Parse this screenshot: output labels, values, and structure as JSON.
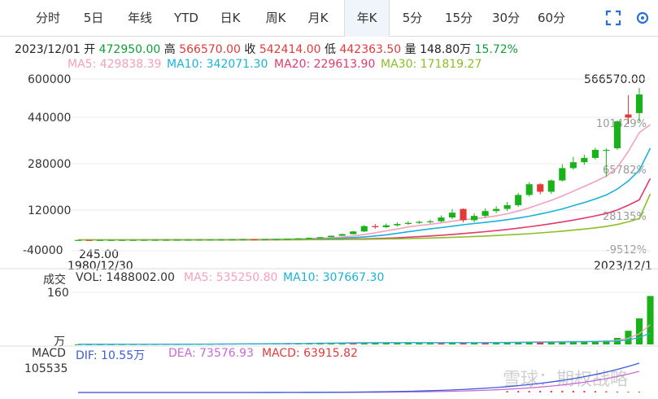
{
  "tabs": [
    "分时",
    "5日",
    "年线",
    "YTD",
    "日K",
    "周K",
    "月K",
    "年K",
    "5分",
    "15分",
    "30分",
    "60分"
  ],
  "active_tab": "年K",
  "info": {
    "date": "2023/12/01",
    "open_label": "开",
    "open": "472950.00",
    "high_label": "高",
    "high": "566570.00",
    "close_label": "收",
    "close": "542414.00",
    "low_label": "低",
    "low": "442363.50",
    "vol_label": "量",
    "vol": "148.80万",
    "pct": "15.72%"
  },
  "ma": {
    "ma5": "MA5: 429838.39",
    "ma10": "MA10: 342071.30",
    "ma20": "MA20: 229613.90",
    "ma30": "MA30: 171819.27"
  },
  "colors": {
    "up": "#e23a3a",
    "down": "#19b319",
    "ma5": "#f4a0be",
    "ma10": "#1ab2d8",
    "ma20": "#e23a6e",
    "ma30": "#8cbf26",
    "dif": "#3d5bd9",
    "dea": "#c86ad6"
  },
  "y_axis_left": [
    "600000",
    "440000",
    "280000",
    "120000",
    "-40000"
  ],
  "y_axis_right": [
    "101429%",
    "65782%",
    "28135%",
    "-9512%"
  ],
  "max_label": "566570.00",
  "first_label": "245.00",
  "x_start": "1980/12/30",
  "x_end": "2023/12/1",
  "vol_panel": {
    "title": "成交",
    "vol": "VOL: 1488002.00",
    "ma5": "MA5: 535250.80",
    "ma10": "MA10: 307667.30",
    "ytop": "160",
    "unit": "万"
  },
  "macd_panel": {
    "title": "MACD",
    "dif": "DIF: 10.55万",
    "dea": "DEA: 73576.93",
    "macd": "MACD: 63915.82",
    "ytop": "105535"
  },
  "watermark": "雪球：期权战略",
  "chart_data": {
    "type": "candlestick",
    "title": "",
    "x_range": [
      "1980/12/30",
      "2023/12/1"
    ],
    "ylim": [
      -40000,
      600000
    ],
    "candles": [
      {
        "o": 245,
        "c": 420,
        "h": 500,
        "l": 200
      },
      {
        "o": 420,
        "c": 380,
        "h": 520,
        "l": 350
      },
      {
        "o": 380,
        "c": 450,
        "h": 500,
        "l": 350
      },
      {
        "o": 450,
        "c": 520,
        "h": 600,
        "l": 400
      },
      {
        "o": 520,
        "c": 600,
        "h": 700,
        "l": 480
      },
      {
        "o": 600,
        "c": 650,
        "h": 720,
        "l": 560
      },
      {
        "o": 650,
        "c": 800,
        "h": 900,
        "l": 600
      },
      {
        "o": 800,
        "c": 900,
        "h": 1100,
        "l": 760
      },
      {
        "o": 900,
        "c": 1000,
        "h": 1200,
        "l": 850
      },
      {
        "o": 1000,
        "c": 1200,
        "h": 1400,
        "l": 950
      },
      {
        "o": 1200,
        "c": 1300,
        "h": 1500,
        "l": 1100
      },
      {
        "o": 1300,
        "c": 1500,
        "h": 1800,
        "l": 1200
      },
      {
        "o": 1500,
        "c": 1700,
        "h": 2000,
        "l": 1400
      },
      {
        "o": 1700,
        "c": 2000,
        "h": 2300,
        "l": 1600
      },
      {
        "o": 2000,
        "c": 2400,
        "h": 2600,
        "l": 1900
      },
      {
        "o": 2400,
        "c": 2800,
        "h": 3100,
        "l": 2300
      },
      {
        "o": 2800,
        "c": 2300,
        "h": 3200,
        "l": 2100
      },
      {
        "o": 2300,
        "c": 3000,
        "h": 3400,
        "l": 2200
      },
      {
        "o": 3000,
        "c": 3800,
        "h": 4200,
        "l": 2900
      },
      {
        "o": 3800,
        "c": 5000,
        "h": 5500,
        "l": 3700
      },
      {
        "o": 5000,
        "c": 6500,
        "h": 7000,
        "l": 4800
      },
      {
        "o": 6500,
        "c": 8500,
        "h": 9200,
        "l": 6200
      },
      {
        "o": 8500,
        "c": 11000,
        "h": 12000,
        "l": 8000
      },
      {
        "o": 11000,
        "c": 16000,
        "h": 17000,
        "l": 10500
      },
      {
        "o": 16000,
        "c": 22000,
        "h": 24000,
        "l": 15000
      },
      {
        "o": 22000,
        "c": 32000,
        "h": 34000,
        "l": 21000
      },
      {
        "o": 32000,
        "c": 52000,
        "h": 56000,
        "l": 30000
      },
      {
        "o": 52000,
        "c": 48000,
        "h": 60000,
        "l": 42000
      },
      {
        "o": 48000,
        "c": 55000,
        "h": 62000,
        "l": 44000
      },
      {
        "o": 55000,
        "c": 60000,
        "h": 66000,
        "l": 50000
      },
      {
        "o": 60000,
        "c": 64000,
        "h": 70000,
        "l": 56000
      },
      {
        "o": 64000,
        "c": 68000,
        "h": 72000,
        "l": 60000
      },
      {
        "o": 68000,
        "c": 70000,
        "h": 76000,
        "l": 62000
      },
      {
        "o": 70000,
        "c": 84000,
        "h": 92000,
        "l": 66000
      },
      {
        "o": 84000,
        "c": 102000,
        "h": 116000,
        "l": 78000
      },
      {
        "o": 116000,
        "c": 74000,
        "h": 118000,
        "l": 66000
      },
      {
        "o": 74000,
        "c": 90000,
        "h": 100000,
        "l": 66000
      },
      {
        "o": 90000,
        "c": 108000,
        "h": 118000,
        "l": 84000
      },
      {
        "o": 108000,
        "c": 116000,
        "h": 126000,
        "l": 100000
      },
      {
        "o": 116000,
        "c": 130000,
        "h": 142000,
        "l": 108000
      },
      {
        "o": 130000,
        "c": 168000,
        "h": 176000,
        "l": 124000
      },
      {
        "o": 168000,
        "c": 208000,
        "h": 216000,
        "l": 162000
      },
      {
        "o": 208000,
        "c": 180000,
        "h": 212000,
        "l": 170000
      },
      {
        "o": 180000,
        "c": 222000,
        "h": 226000,
        "l": 172000
      },
      {
        "o": 222000,
        "c": 268000,
        "h": 282000,
        "l": 218000
      },
      {
        "o": 268000,
        "c": 290000,
        "h": 310000,
        "l": 262000
      },
      {
        "o": 290000,
        "c": 306000,
        "h": 318000,
        "l": 280000
      },
      {
        "o": 306000,
        "c": 336000,
        "h": 344000,
        "l": 300000
      },
      {
        "o": 336000,
        "c": 336000,
        "h": 342000,
        "l": 236000
      },
      {
        "o": 342000,
        "c": 442000,
        "h": 446000,
        "l": 336000
      },
      {
        "o": 468000,
        "c": 456000,
        "h": 540000,
        "l": 432000
      },
      {
        "o": 472950,
        "c": 542414,
        "h": 566570,
        "l": 442363.5
      }
    ],
    "ma": {
      "MA5": [
        245,
        300,
        350,
        400,
        460,
        520,
        590,
        680,
        790,
        900,
        1030,
        1180,
        1350,
        1550,
        1800,
        2060,
        2280,
        2560,
        2900,
        3380,
        4100,
        5050,
        6380,
        8400,
        11000,
        15200,
        21000,
        27000,
        34000,
        41000,
        49000,
        54000,
        59000,
        64000,
        70000,
        76000,
        80000,
        84000,
        90000,
        98000,
        108000,
        120000,
        134000,
        148000,
        164000,
        182000,
        200000,
        218000,
        238000,
        270000,
        330000,
        400000,
        429838
      ],
      "MA10": [
        245,
        290,
        330,
        370,
        410,
        450,
        500,
        560,
        630,
        710,
        800,
        900,
        1010,
        1140,
        1300,
        1480,
        1660,
        1880,
        2140,
        2490,
        2950,
        3530,
        4330,
        5460,
        7000,
        9100,
        11800,
        15200,
        19600,
        24900,
        31000,
        36500,
        41500,
        46500,
        51700,
        57000,
        61500,
        66000,
        70500,
        76000,
        82000,
        89000,
        97000,
        106000,
        116000,
        128000,
        140000,
        153000,
        168000,
        190000,
        220000,
        260000,
        342071
      ],
      "MA20": [
        245,
        280,
        310,
        340,
        370,
        400,
        430,
        470,
        510,
        560,
        610,
        670,
        740,
        810,
        890,
        980,
        1080,
        1190,
        1320,
        1480,
        1680,
        1920,
        2220,
        2610,
        3120,
        3780,
        4620,
        5680,
        7000,
        8620,
        10600,
        12700,
        15100,
        17800,
        20900,
        24300,
        27700,
        31300,
        35200,
        39500,
        44300,
        49400,
        55000,
        61000,
        67500,
        74500,
        82000,
        90000,
        99000,
        112000,
        130000,
        150000,
        229614
      ],
      "MA30": [
        245,
        270,
        300,
        320,
        340,
        370,
        400,
        430,
        460,
        500,
        540,
        590,
        640,
        700,
        760,
        830,
        910,
        990,
        1090,
        1200,
        1330,
        1480,
        1660,
        1880,
        2150,
        2470,
        2870,
        3350,
        3950,
        4680,
        5560,
        6550,
        7650,
        8870,
        10200,
        11700,
        13300,
        15000,
        16900,
        19000,
        21300,
        23800,
        26600,
        29700,
        33100,
        36900,
        41000,
        45600,
        50600,
        58000,
        68000,
        80000,
        171819
      ]
    },
    "volume": {
      "unit": "万",
      "ylim": [
        0,
        160
      ],
      "values": [
        0.5,
        0.5,
        0.5,
        0.6,
        0.6,
        0.7,
        0.8,
        0.9,
        1,
        1.1,
        1.3,
        1.5,
        1.7,
        2,
        2.3,
        2.6,
        2.4,
        2.7,
        3,
        3.5,
        4,
        4.6,
        5.2,
        5.6,
        5.8,
        6,
        6.2,
        5.4,
        5.6,
        5.2,
        5,
        4.8,
        5,
        5.6,
        6,
        5.4,
        5.8,
        6.4,
        7,
        7.4,
        8,
        9,
        8.6,
        8.8,
        9,
        9.6,
        10.4,
        11,
        12,
        20,
        42,
        80,
        148.8
      ],
      "colors": [
        "d",
        "d",
        "d",
        "d",
        "d",
        "d",
        "d",
        "d",
        "d",
        "d",
        "d",
        "d",
        "d",
        "u",
        "d",
        "d",
        "u",
        "d",
        "d",
        "u",
        "d",
        "d",
        "d",
        "d",
        "d",
        "u",
        "d",
        "d",
        "d",
        "d",
        "d",
        "d",
        "d",
        "u",
        "d",
        "u",
        "d",
        "u",
        "d",
        "d",
        "d",
        "d",
        "u",
        "d",
        "d",
        "d",
        "d",
        "d",
        "d",
        "d",
        "d",
        "d",
        "d"
      ]
    },
    "macd": {
      "dif_last": 105500,
      "dea_last": 73576.93,
      "macd_last": 63915.82,
      "ytop": 105535
    }
  }
}
